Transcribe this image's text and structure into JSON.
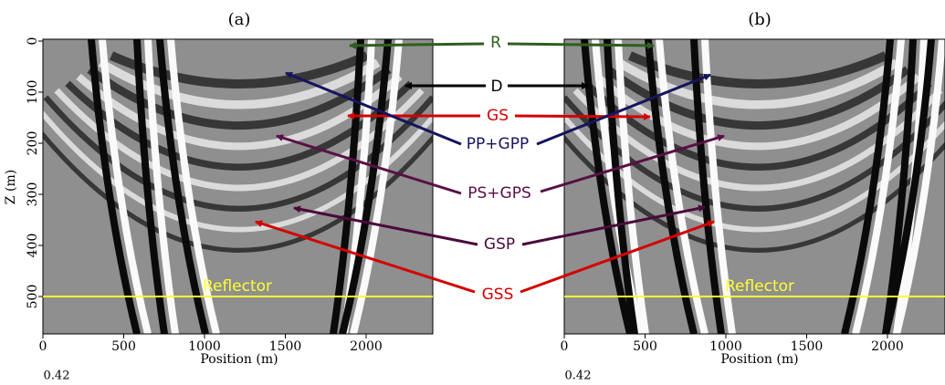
{
  "panels": [
    {
      "label": "(a)",
      "x_label": "Position (m)",
      "y_label": "Z (m)",
      "xlim": [
        0,
        2400
      ],
      "ylim": [
        0,
        573
      ],
      "xticks": [
        0,
        500,
        1000,
        1500,
        2000
      ],
      "yticks": [
        0,
        100,
        200,
        300,
        400,
        500
      ],
      "reflector_depth": 500,
      "reflector_label": "Reflector",
      "clip_value": "0.42"
    },
    {
      "label": "(b)",
      "x_label": "Position (m)",
      "xlim": [
        0,
        2355
      ],
      "ylim": [
        0,
        573
      ],
      "xticks": [
        0,
        500,
        1000,
        1500,
        2000
      ],
      "reflector_depth": 500,
      "reflector_label": "Reflector",
      "clip_value": "0.42"
    }
  ],
  "annotations": [
    {
      "label": "R",
      "color": "#2e5e1e"
    },
    {
      "label": "D",
      "color": "#000000"
    },
    {
      "label": "GS",
      "color": "#d40000"
    },
    {
      "label": "PP+GPP",
      "color": "#14145e"
    },
    {
      "label": "PS+GPS",
      "color": "#5a0f45"
    },
    {
      "label": "GSP",
      "color": "#4a0a3a"
    },
    {
      "label": "GSS",
      "color": "#d40000"
    }
  ]
}
